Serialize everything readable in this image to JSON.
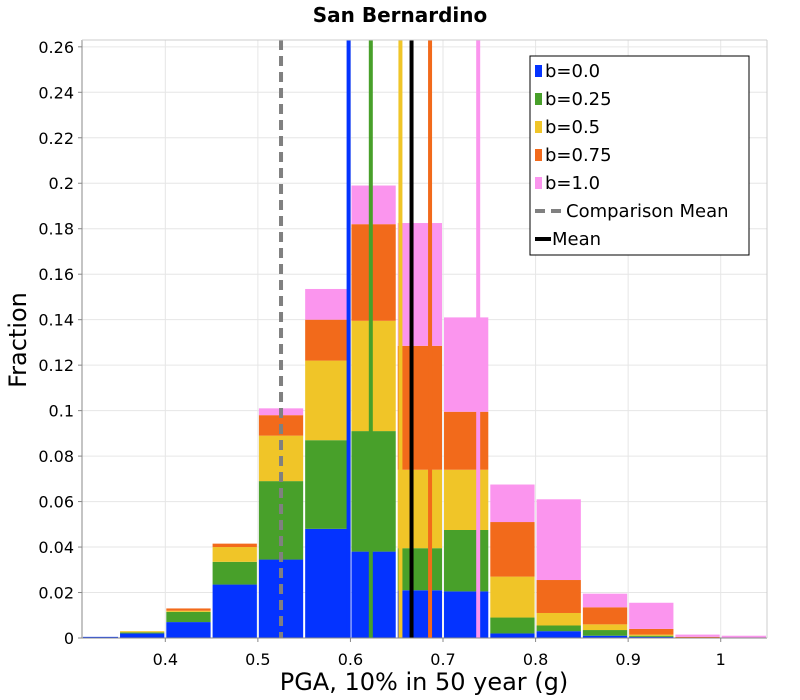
{
  "chart_data": {
    "type": "bar",
    "title": "San Bernardino",
    "xlabel": "PGA, 10% in 50 year (g)",
    "ylabel": "Fraction",
    "xlim": [
      0.31,
      1.05
    ],
    "ylim": [
      0,
      0.263
    ],
    "bin_width": 0.05,
    "x_ticks": [
      {
        "value": 0.4,
        "label": "0.4"
      },
      {
        "value": 0.5,
        "label": "0.5"
      },
      {
        "value": 0.6,
        "label": "0.6"
      },
      {
        "value": 0.7,
        "label": "0.7"
      },
      {
        "value": 0.8,
        "label": "0.8"
      },
      {
        "value": 0.9,
        "label": "0.9"
      },
      {
        "value": 1.0,
        "label": "1"
      }
    ],
    "y_ticks": [
      {
        "value": 0,
        "label": "0"
      },
      {
        "value": 0.02,
        "label": "0.02"
      },
      {
        "value": 0.04,
        "label": "0.04"
      },
      {
        "value": 0.06,
        "label": "0.06"
      },
      {
        "value": 0.08,
        "label": "0.08"
      },
      {
        "value": 0.1,
        "label": "0.1"
      },
      {
        "value": 0.12,
        "label": "0.12"
      },
      {
        "value": 0.14,
        "label": "0.14"
      },
      {
        "value": 0.16,
        "label": "0.16"
      },
      {
        "value": 0.18,
        "label": "0.18"
      },
      {
        "value": 0.2,
        "label": "0.2"
      },
      {
        "value": 0.22,
        "label": "0.22"
      },
      {
        "value": 0.24,
        "label": "0.24"
      },
      {
        "value": 0.26,
        "label": "0.26"
      }
    ],
    "bin_starts": [
      0.31,
      0.35,
      0.4,
      0.45,
      0.5,
      0.55,
      0.6,
      0.65,
      0.7,
      0.75,
      0.8,
      0.85,
      0.9,
      0.95,
      1.0
    ],
    "series": [
      {
        "name": "b=0.0",
        "color": "#0433ff",
        "values": [
          0.0005,
          0.002,
          0.007,
          0.0235,
          0.0345,
          0.048,
          0.038,
          0.021,
          0.0205,
          0.002,
          0.003,
          0.001,
          0.0005,
          0,
          0
        ]
      },
      {
        "name": "b=0.25",
        "color": "#48a02a",
        "values": [
          0,
          0.0005,
          0.0045,
          0.01,
          0.0345,
          0.039,
          0.053,
          0.0185,
          0.027,
          0.007,
          0.0025,
          0.0025,
          0.0005,
          0,
          0
        ]
      },
      {
        "name": "b=0.5",
        "color": "#f0c528",
        "values": [
          0,
          0.0005,
          0.0005,
          0.0065,
          0.02,
          0.035,
          0.0485,
          0.0345,
          0.0265,
          0.018,
          0.0055,
          0.0025,
          0.0005,
          0,
          0
        ]
      },
      {
        "name": "b=0.75",
        "color": "#f26a1b",
        "values": [
          0,
          0,
          0.001,
          0.0015,
          0.009,
          0.018,
          0.0425,
          0.0545,
          0.0255,
          0.024,
          0.0145,
          0.0075,
          0.0025,
          0.0005,
          0
        ]
      },
      {
        "name": "b=1.0",
        "color": "#fb95ee",
        "values": [
          0,
          0,
          0,
          0,
          0.003,
          0.0135,
          0.017,
          0.054,
          0.0415,
          0.0165,
          0.0355,
          0.006,
          0.0115,
          0.001,
          0.001
        ]
      }
    ],
    "vlines": [
      {
        "name": "b=0.0",
        "x": 0.598,
        "color": "#0433ff",
        "style": "solid"
      },
      {
        "name": "b=0.25",
        "x": 0.622,
        "color": "#48a02a",
        "style": "solid"
      },
      {
        "name": "b=0.5",
        "x": 0.654,
        "color": "#f0c528",
        "style": "solid"
      },
      {
        "name": "b=0.75",
        "x": 0.686,
        "color": "#f26a1b",
        "style": "solid"
      },
      {
        "name": "b=1.0",
        "x": 0.738,
        "color": "#fb95ee",
        "style": "solid"
      },
      {
        "name": "Comparison Mean",
        "x": 0.525,
        "color": "#808080",
        "style": "dashed"
      },
      {
        "name": "Mean",
        "x": 0.666,
        "color": "#000000",
        "style": "solid"
      }
    ],
    "legend": {
      "position": "top-right",
      "entries": [
        {
          "label": "b=0.0",
          "color": "#0433ff",
          "kind": "box"
        },
        {
          "label": "b=0.25",
          "color": "#48a02a",
          "kind": "box"
        },
        {
          "label": "b=0.5",
          "color": "#f0c528",
          "kind": "box"
        },
        {
          "label": "b=0.75",
          "color": "#f26a1b",
          "kind": "box"
        },
        {
          "label": "b=1.0",
          "color": "#fb95ee",
          "kind": "box"
        },
        {
          "label": "Comparison Mean",
          "color": "#808080",
          "kind": "dashed"
        },
        {
          "label": "Mean",
          "color": "#000000",
          "kind": "line"
        }
      ]
    },
    "grid": true
  }
}
